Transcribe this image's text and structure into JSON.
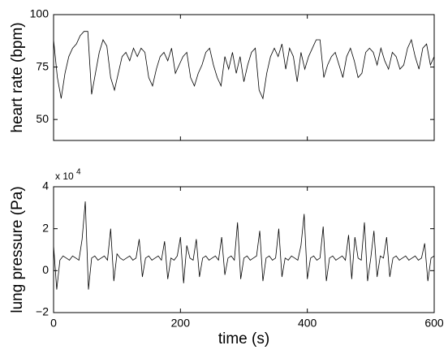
{
  "chart_data": [
    {
      "type": "line",
      "ylabel": "heart rate (bpm)",
      "x": [
        0,
        6,
        12,
        18,
        24,
        30,
        36,
        42,
        48,
        54,
        60,
        66,
        72,
        78,
        84,
        90,
        96,
        102,
        108,
        114,
        120,
        126,
        132,
        138,
        144,
        150,
        156,
        162,
        168,
        174,
        180,
        186,
        192,
        198,
        204,
        210,
        216,
        222,
        228,
        234,
        240,
        246,
        252,
        258,
        264,
        270,
        276,
        282,
        288,
        294,
        300,
        306,
        312,
        318,
        324,
        330,
        336,
        342,
        348,
        354,
        360,
        366,
        372,
        378,
        384,
        390,
        396,
        402,
        408,
        414,
        420,
        426,
        432,
        438,
        444,
        450,
        456,
        462,
        468,
        474,
        480,
        486,
        492,
        498,
        504,
        510,
        516,
        522,
        528,
        534,
        540,
        546,
        552,
        558,
        564,
        570,
        576,
        582,
        588,
        594,
        600
      ],
      "series": [
        {
          "color": "#000000",
          "values": [
            88,
            70,
            60,
            72,
            80,
            84,
            86,
            90,
            92,
            92,
            62,
            72,
            82,
            88,
            85,
            70,
            64,
            72,
            80,
            82,
            78,
            84,
            80,
            84,
            82,
            70,
            66,
            74,
            80,
            82,
            78,
            84,
            72,
            76,
            80,
            82,
            70,
            66,
            72,
            76,
            82,
            84,
            76,
            70,
            66,
            80,
            74,
            82,
            72,
            80,
            68,
            76,
            82,
            84,
            64,
            60,
            72,
            80,
            84,
            80,
            86,
            74,
            84,
            80,
            68,
            82,
            74,
            80,
            84,
            88,
            88,
            70,
            76,
            80,
            82,
            76,
            70,
            80,
            84,
            78,
            70,
            72,
            82,
            84,
            82,
            76,
            84,
            78,
            74,
            82,
            80,
            74,
            76,
            84,
            88,
            80,
            74,
            84,
            86,
            76,
            80
          ]
        }
      ],
      "xlim": [
        0,
        600
      ],
      "xticks": [
        0,
        200,
        400,
        600
      ],
      "xtick_labels": false,
      "ylim": [
        40,
        100
      ],
      "yticks": [
        50,
        75,
        100
      ]
    },
    {
      "type": "line",
      "ylabel": "lung pressure (Pa)",
      "xlabel": "time (s)",
      "y_multiplier": {
        "base": "x 10",
        "exponent": "4"
      },
      "x": [
        0,
        5,
        10,
        15,
        20,
        25,
        30,
        35,
        40,
        45,
        50,
        55,
        60,
        65,
        70,
        75,
        80,
        85,
        90,
        95,
        100,
        105,
        110,
        115,
        120,
        125,
        130,
        135,
        140,
        145,
        150,
        155,
        160,
        165,
        170,
        175,
        180,
        185,
        190,
        195,
        200,
        205,
        210,
        215,
        220,
        225,
        230,
        235,
        240,
        245,
        250,
        255,
        260,
        265,
        270,
        275,
        280,
        285,
        290,
        295,
        300,
        305,
        310,
        315,
        320,
        325,
        330,
        335,
        340,
        345,
        350,
        355,
        360,
        365,
        370,
        375,
        380,
        385,
        390,
        395,
        400,
        405,
        410,
        415,
        420,
        425,
        430,
        435,
        440,
        445,
        450,
        455,
        460,
        465,
        470,
        475,
        480,
        485,
        490,
        495,
        500,
        505,
        510,
        515,
        520,
        525,
        530,
        535,
        540,
        545,
        550,
        555,
        560,
        565,
        570,
        575,
        580,
        585,
        590,
        595,
        600
      ],
      "series": [
        {
          "color": "#000000",
          "values": [
            12000,
            -9000,
            5000,
            7000,
            6000,
            5000,
            7000,
            6000,
            5000,
            15000,
            33000,
            -9000,
            6000,
            7000,
            5000,
            6000,
            7000,
            5000,
            20000,
            -5000,
            8000,
            6000,
            5000,
            6000,
            7000,
            5000,
            6000,
            15000,
            -3000,
            6000,
            7000,
            5000,
            6000,
            7000,
            5000,
            14000,
            -4000,
            6000,
            5000,
            7000,
            16000,
            -6000,
            12000,
            6000,
            5000,
            15000,
            -3000,
            6000,
            7000,
            5000,
            6000,
            7000,
            5000,
            16000,
            -2000,
            6000,
            7000,
            5000,
            23000,
            -4000,
            6000,
            7000,
            5000,
            6000,
            7000,
            19000,
            -5000,
            6000,
            7000,
            5000,
            6000,
            20000,
            -3000,
            6000,
            5000,
            7000,
            6000,
            5000,
            12000,
            27000,
            -4000,
            6000,
            7000,
            5000,
            6000,
            21000,
            -5000,
            6000,
            7000,
            5000,
            6000,
            7000,
            5000,
            17000,
            -4000,
            16000,
            6000,
            5000,
            23000,
            -5000,
            6000,
            19000,
            -3000,
            7000,
            6000,
            16000,
            -3000,
            6000,
            7000,
            5000,
            6000,
            7000,
            5000,
            6000,
            7000,
            5000,
            6000,
            13000,
            -5000,
            6000,
            7000
          ]
        }
      ],
      "xlim": [
        0,
        600
      ],
      "xticks": [
        0,
        200,
        400,
        600
      ],
      "xtick_labels": true,
      "ylim": [
        -20000,
        40000
      ],
      "yticks": [
        {
          "value": -20000,
          "label": "−2"
        },
        {
          "value": 0,
          "label": "0"
        },
        {
          "value": 20000,
          "label": "2"
        },
        {
          "value": 40000,
          "label": "4"
        }
      ]
    }
  ]
}
